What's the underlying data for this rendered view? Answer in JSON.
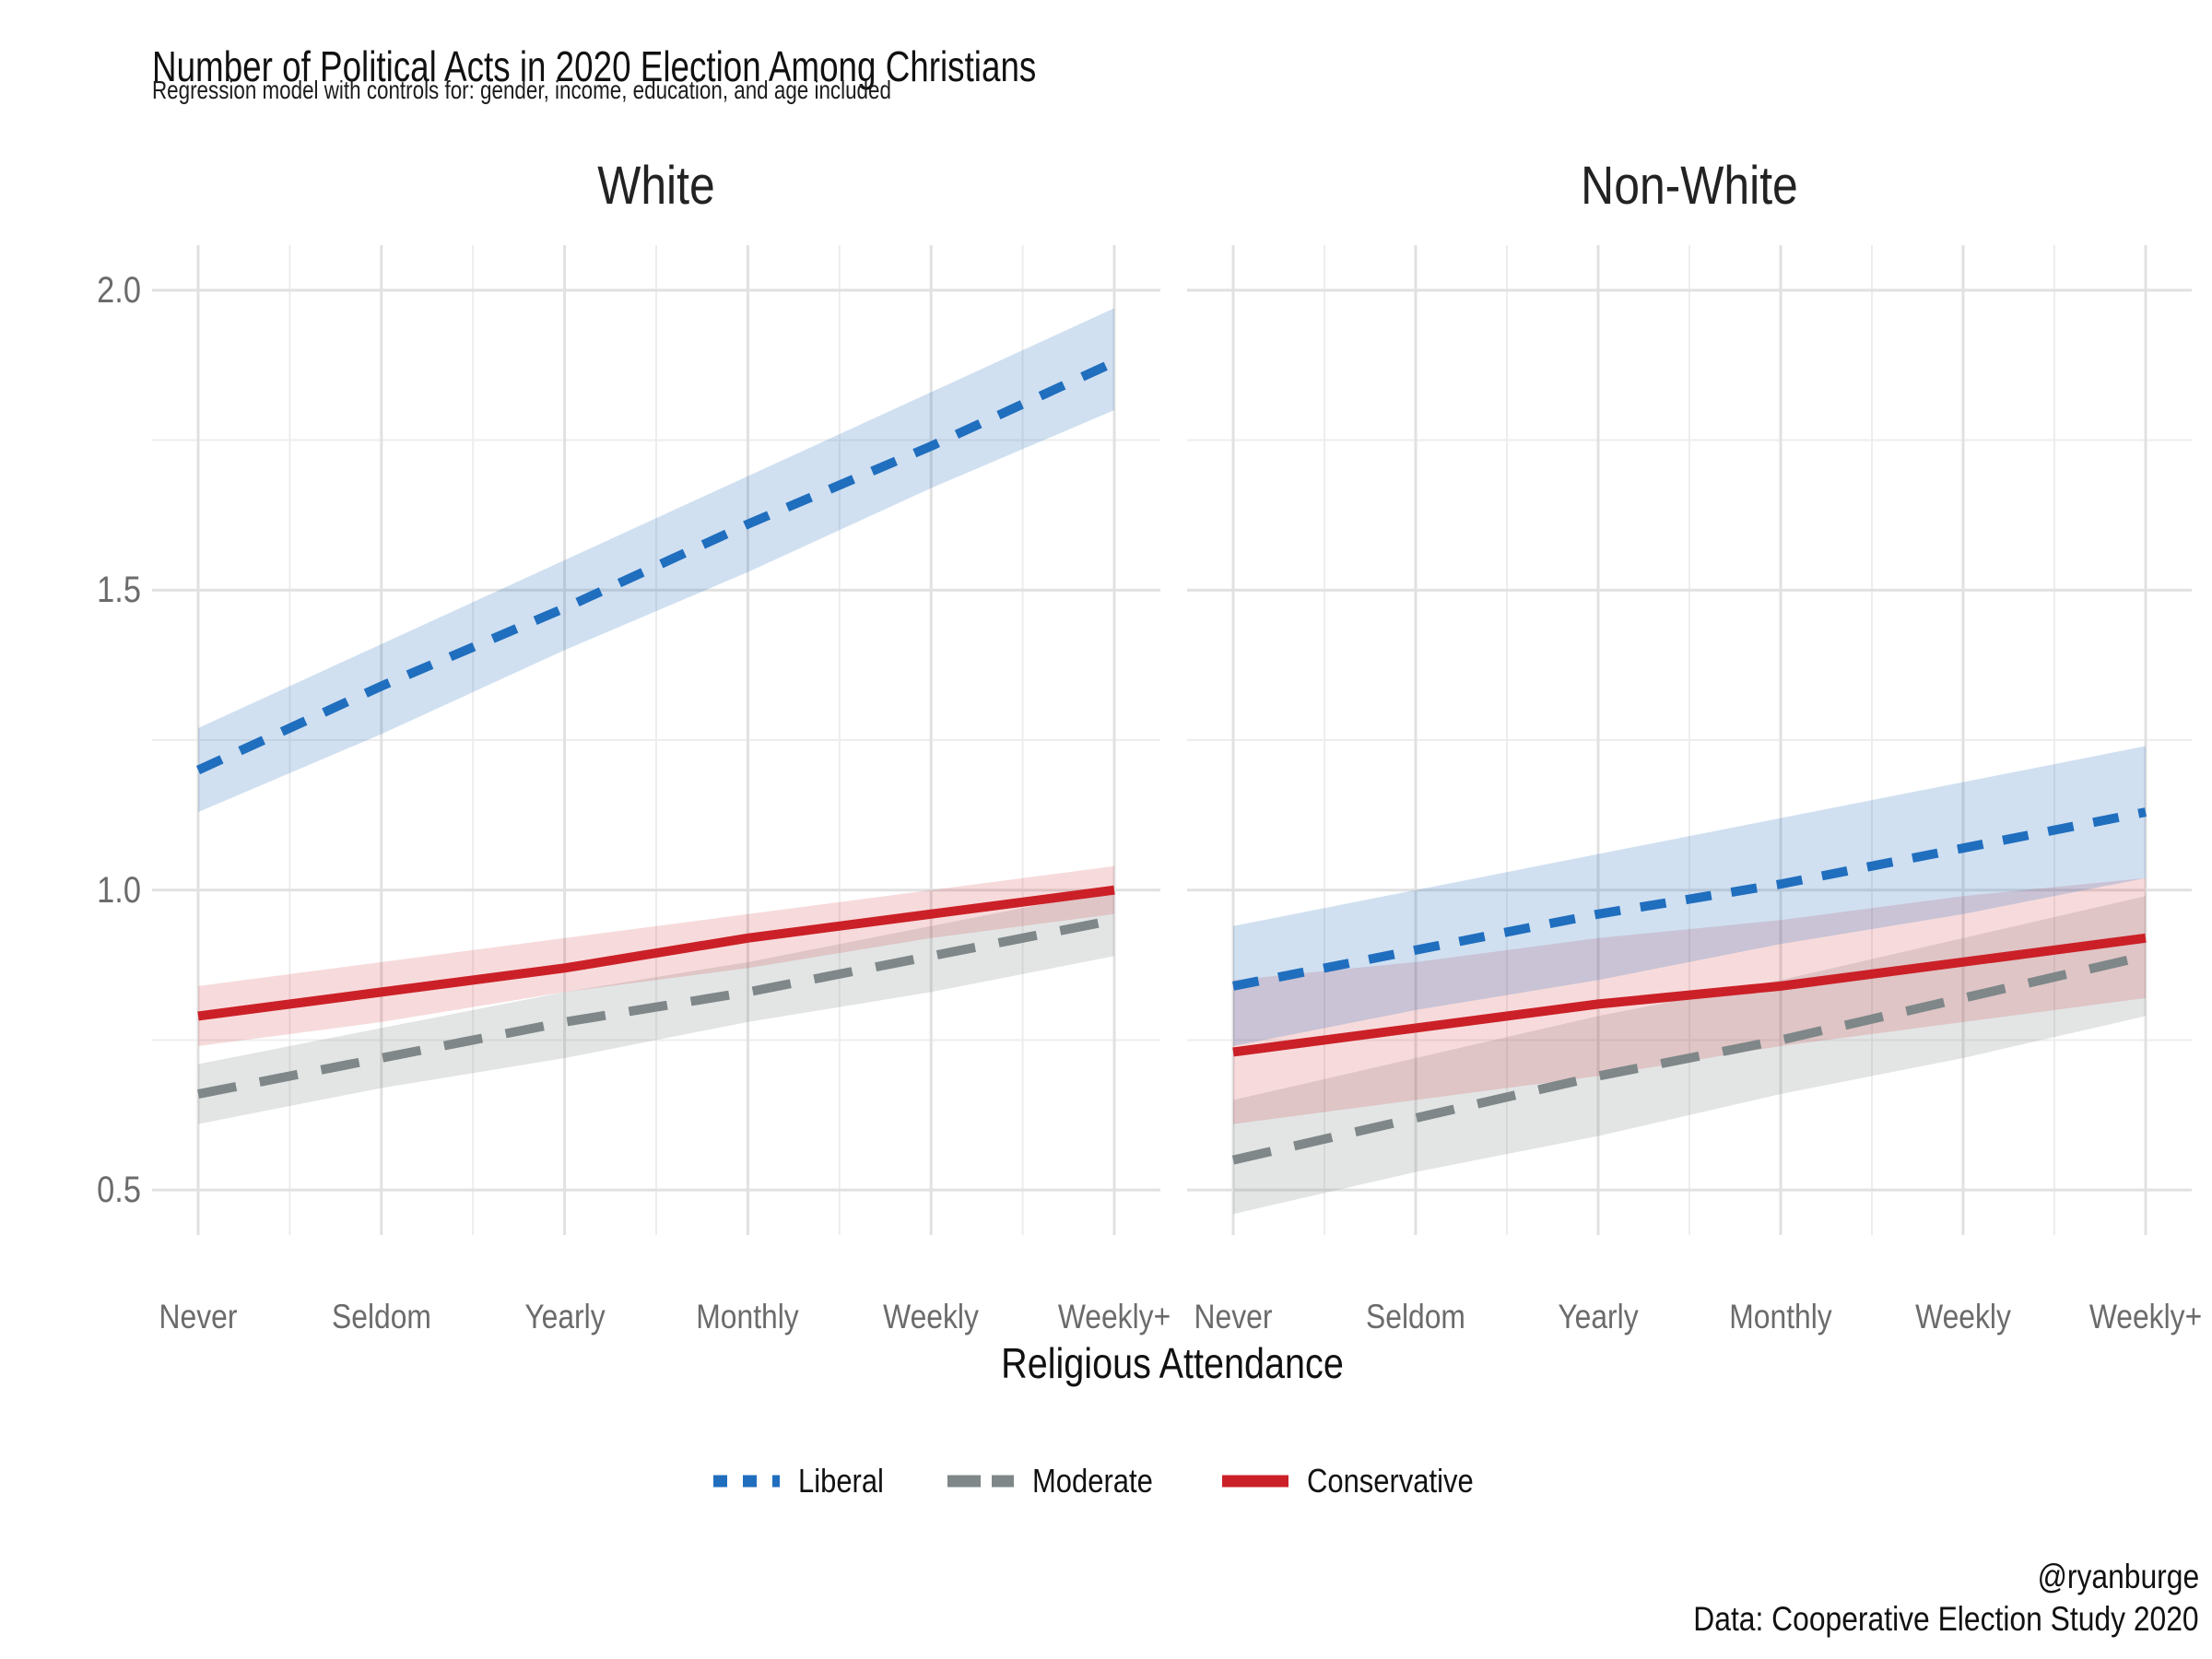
{
  "header": {
    "title": "Number of Political Acts in 2020 Election Among Christians",
    "subtitle": "Regression model with controls for: gender, income, education, and age included"
  },
  "caption": {
    "line1": "@ryanburge",
    "line2": "Data: Cooperative Election Study 2020"
  },
  "chart_data": {
    "type": "line",
    "title": "Number of Political Acts in 2020 Election Among Christians",
    "subtitle": "Regression model with controls for: gender, income, education, and age included",
    "xlabel": "Religious Attendance",
    "ylabel": "",
    "x_axis_title": "Religious Attendance",
    "categories": [
      "Never",
      "Seldom",
      "Yearly",
      "Monthly",
      "Weekly",
      "Weekly+"
    ],
    "y_axis": {
      "range": [
        0.425,
        2.075
      ],
      "ticks": [
        {
          "label": "0.5",
          "value": 0.5
        },
        {
          "label": "1.0",
          "value": 1.0
        },
        {
          "label": "1.5",
          "value": 1.5
        },
        {
          "label": "2.0",
          "value": 2.0
        }
      ],
      "minor_ticks": [
        0.75,
        1.25,
        1.75
      ]
    },
    "grid": true,
    "legend_position": "bottom",
    "colors": {
      "liberal_blue": "#206ebe",
      "moderate_gray": "#7f8788",
      "conservative_red": "#cb2027",
      "gridline_major": "#e1e1e1",
      "gridline_minor": "#ededed"
    },
    "series_meta": [
      {
        "name": "Liberal",
        "color": "#206ebe",
        "band_color": "rgba(32,110,190,0.21)",
        "dash": "28 22",
        "legend_dash": "15 17"
      },
      {
        "name": "Moderate",
        "color": "#7f8788",
        "band_color": "rgba(127,135,136,0.22)",
        "dash": "42 26",
        "legend_dash": "36 12"
      },
      {
        "name": "Conservative",
        "color": "#cb2027",
        "band_color": "rgba(203,32,39,0.16)",
        "dash": "none",
        "legend_dash": "none"
      }
    ],
    "facets": [
      {
        "label": "White",
        "series": [
          {
            "name": "Liberal",
            "values": [
              1.2,
              1.34,
              1.47,
              1.61,
              1.74,
              1.88
            ],
            "ci_upper": [
              1.27,
              1.41,
              1.55,
              1.69,
              1.83,
              1.97
            ],
            "ci_lower": [
              1.13,
              1.26,
              1.4,
              1.53,
              1.67,
              1.8
            ]
          },
          {
            "name": "Moderate",
            "values": [
              0.66,
              0.72,
              0.78,
              0.83,
              0.89,
              0.95
            ],
            "ci_upper": [
              0.71,
              0.77,
              0.83,
              0.88,
              0.94,
              1.0
            ],
            "ci_lower": [
              0.61,
              0.67,
              0.72,
              0.78,
              0.83,
              0.89
            ]
          },
          {
            "name": "Conservative",
            "values": [
              0.79,
              0.83,
              0.87,
              0.92,
              0.96,
              1.0
            ],
            "ci_upper": [
              0.84,
              0.88,
              0.92,
              0.96,
              1.0,
              1.04
            ],
            "ci_lower": [
              0.74,
              0.78,
              0.83,
              0.87,
              0.92,
              0.96
            ]
          }
        ]
      },
      {
        "label": "Non-White",
        "series": [
          {
            "name": "Liberal",
            "values": [
              0.84,
              0.9,
              0.96,
              1.01,
              1.07,
              1.13
            ],
            "ci_upper": [
              0.94,
              1.0,
              1.06,
              1.12,
              1.18,
              1.24
            ],
            "ci_lower": [
              0.74,
              0.8,
              0.85,
              0.91,
              0.96,
              1.02
            ]
          },
          {
            "name": "Moderate",
            "values": [
              0.55,
              0.62,
              0.69,
              0.75,
              0.82,
              0.89
            ],
            "ci_upper": [
              0.65,
              0.72,
              0.79,
              0.85,
              0.92,
              0.99
            ],
            "ci_lower": [
              0.46,
              0.53,
              0.59,
              0.66,
              0.72,
              0.79
            ]
          },
          {
            "name": "Conservative",
            "values": [
              0.73,
              0.77,
              0.81,
              0.84,
              0.88,
              0.92
            ],
            "ci_upper": [
              0.85,
              0.88,
              0.92,
              0.95,
              0.99,
              1.02
            ],
            "ci_lower": [
              0.61,
              0.65,
              0.69,
              0.74,
              0.78,
              0.82
            ]
          }
        ]
      }
    ]
  }
}
